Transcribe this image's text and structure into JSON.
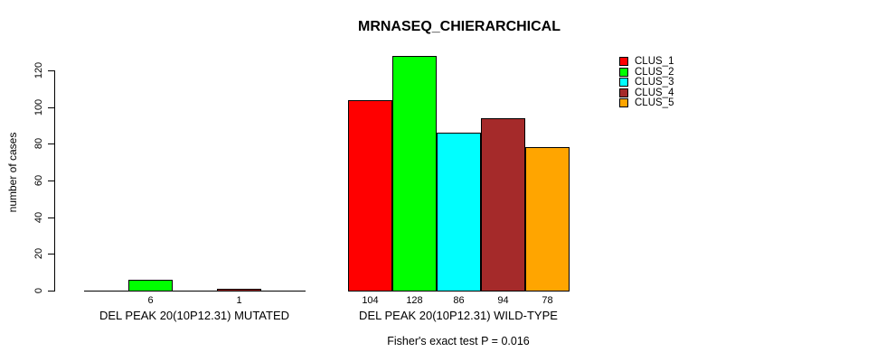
{
  "title": "MRNASEQ_CHIERARCHICAL",
  "y_axis": {
    "label": "number of cases",
    "tick_labels": [
      "0",
      "20",
      "40",
      "60",
      "80",
      "100",
      "120"
    ]
  },
  "footer": "Fisher's exact test P = 0.016",
  "legend": {
    "position": "top-right",
    "items": [
      {
        "label": "CLUS_1",
        "color": "#FF0000"
      },
      {
        "label": "CLUS_2",
        "color": "#00FF00"
      },
      {
        "label": "CLUS_3",
        "color": "#00FFFF"
      },
      {
        "label": "CLUS_4",
        "color": "#A52A2A"
      },
      {
        "label": "CLUS_5",
        "color": "#FFA500"
      }
    ]
  },
  "chart_data": {
    "type": "bar",
    "title": "MRNASEQ_CHIERARCHICAL",
    "xlabel": "",
    "ylabel": "number of cases",
    "ylim": [
      0,
      128
    ],
    "yticks": [
      0,
      20,
      40,
      60,
      80,
      100,
      120
    ],
    "grid": false,
    "legend_position": "top-right",
    "categories": [
      "DEL PEAK 20(10P12.31) MUTATED",
      "DEL PEAK 20(10P12.31) WILD-TYPE"
    ],
    "series": [
      {
        "name": "CLUS_1",
        "color": "#FF0000",
        "values": [
          0,
          104
        ]
      },
      {
        "name": "CLUS_2",
        "color": "#00FF00",
        "values": [
          6,
          128
        ]
      },
      {
        "name": "CLUS_3",
        "color": "#00FFFF",
        "values": [
          0,
          86
        ]
      },
      {
        "name": "CLUS_4",
        "color": "#A52A2A",
        "values": [
          1,
          94
        ]
      },
      {
        "name": "CLUS_5",
        "color": "#FFA500",
        "values": [
          0,
          78
        ]
      }
    ],
    "visible_bar_value_labels": [
      "6",
      "1",
      "104",
      "128",
      "86",
      "94",
      "78"
    ],
    "annotation": "Fisher's exact test P = 0.016"
  }
}
